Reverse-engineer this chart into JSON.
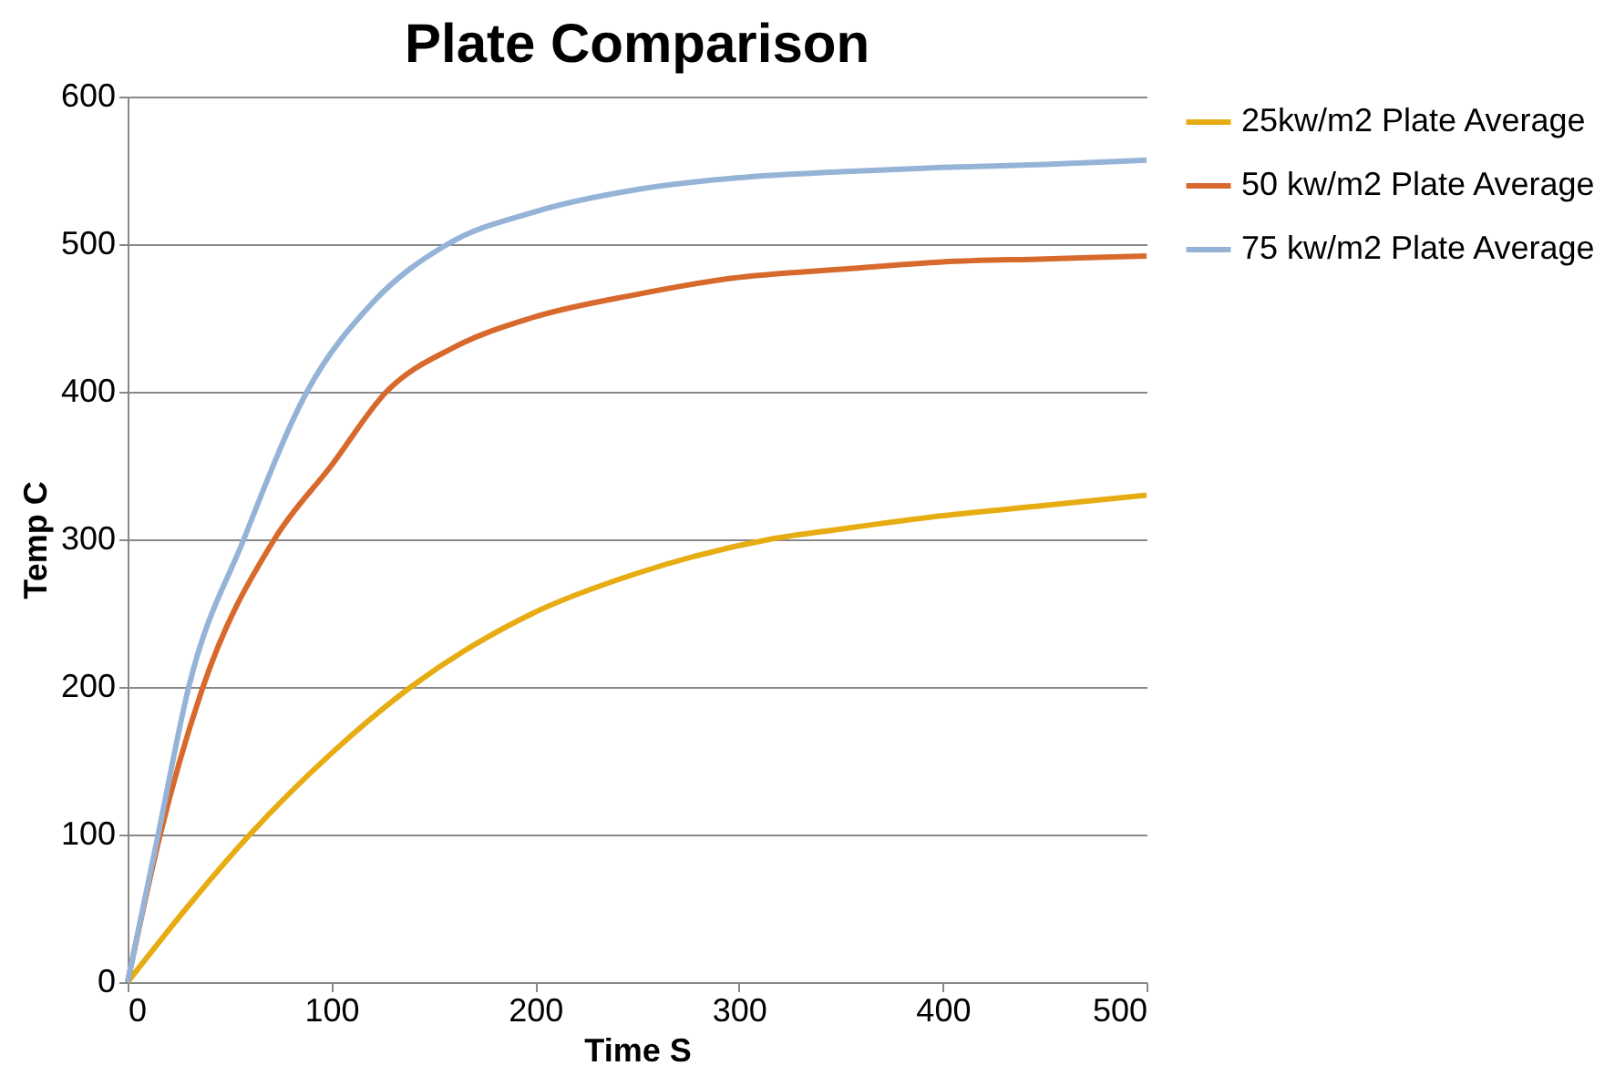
{
  "chart_data": {
    "type": "line",
    "title": "Plate Comparison",
    "xlabel": "Time S",
    "ylabel": "Temp C",
    "xlim": [
      0,
      500
    ],
    "xticks": [
      0,
      100,
      200,
      300,
      400,
      500
    ],
    "ylim": [
      0,
      600
    ],
    "yticks": [
      0,
      100,
      200,
      300,
      400,
      500,
      600
    ],
    "grid": "y",
    "legend": "right",
    "marker": "none",
    "line_style": "solid",
    "series": [
      {
        "name": "25kw/m2 Plate Average",
        "color": "#e6ac12",
        "x": [
          0,
          30,
          60,
          100,
          139,
          199,
          250,
          315,
          350,
          400,
          450,
          500
        ],
        "values": [
          0,
          52,
          100,
          155,
          200,
          250,
          277,
          300,
          307,
          316,
          323,
          330
        ]
      },
      {
        "name": "50 kw/m2 Plate Average",
        "color": "#d8692c",
        "x": [
          0,
          16,
          37,
          72,
          100,
          127,
          160,
          198,
          250,
          297,
          350,
          400,
          450,
          500
        ],
        "values": [
          0,
          100,
          200,
          300,
          350,
          400,
          430,
          450,
          466,
          477,
          483,
          488,
          490,
          492
        ]
      },
      {
        "name": "75 kw/m2 Plate Average",
        "color": "#95b3d7",
        "x": [
          0,
          15,
          30,
          57,
          88,
          120,
          157,
          200,
          250,
          300,
          350,
          400,
          450,
          500
        ],
        "values": [
          0,
          100,
          200,
          300,
          400,
          460,
          500,
          522,
          537,
          545,
          549,
          552,
          554,
          557
        ]
      }
    ]
  }
}
